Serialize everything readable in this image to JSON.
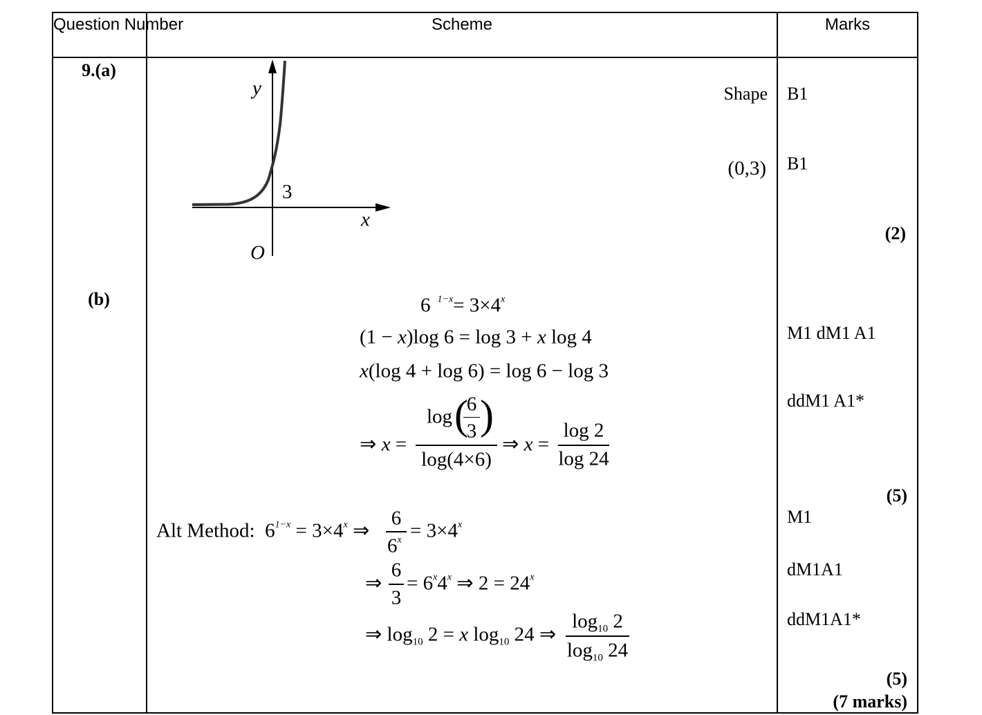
{
  "header": {
    "question": "Question Number",
    "scheme": "Scheme",
    "marks": "Marks"
  },
  "part_a": {
    "label": "9.(a)",
    "graph": {
      "y_label": "y",
      "x_label": "x",
      "origin_label": "O",
      "intercept_label": "3"
    },
    "criteria": [
      {
        "text": "Shape",
        "mark": "B1"
      },
      {
        "text": "(0,3)",
        "mark": "B1"
      }
    ],
    "total": "(2)"
  },
  "part_b": {
    "label": "(b)",
    "line1": {
      "a": "6",
      "sup1": "1−x",
      "b": "= 3×4",
      "sup2": "x"
    },
    "line2": {
      "a": "(1 − ",
      "x": "x",
      "b": ")log 6 = log 3 + ",
      "x2": "x",
      "c": " log 4"
    },
    "line3": {
      "x": "x",
      "a": "(log 4 + log 6) = log 6 − log 3"
    },
    "line4": {
      "arrow": "⇒ ",
      "x": "x",
      "eq": " =",
      "num": "log",
      "inner_num": "6",
      "inner_den": "3",
      "den": "log(4×6)",
      "arrow2": "⇒ ",
      "x2": "x",
      "eq2": " =",
      "num2": "log 2",
      "den2": "log 24"
    },
    "marks": [
      "M1  dM1 A1",
      "ddM1 A1*"
    ],
    "total": "(5)",
    "alt": {
      "label": "Alt Method:",
      "l1": {
        "a": "6",
        "sup1": "1−x",
        "b": " = 3×4",
        "sup2": "x",
        "c": " ⇒",
        "num": "6",
        "den": "6",
        "den_sup": "x",
        "d": "= 3×4",
        "sup3": "x"
      },
      "l2": {
        "a": "⇒",
        "num": "6",
        "den": "3",
        "b": "= 6",
        "sup1": "x",
        "c": "4",
        "sup2": "x",
        "d": " ⇒ 2 = 24",
        "sup3": "x"
      },
      "l3": {
        "a": "⇒ log",
        "sub1": "10",
        "b": " 2 = ",
        "x": "x",
        "c": " log",
        "sub2": "10",
        "d": " 24 ⇒",
        "num": "log",
        "num_sub": "10",
        "num_b": " 2",
        "den": "log",
        "den_sub": "10",
        "den_b": " 24"
      },
      "marks": [
        "M1",
        "dM1A1",
        "ddM1A1*"
      ],
      "total": "(5)"
    },
    "grand_total": "(7 marks)"
  }
}
